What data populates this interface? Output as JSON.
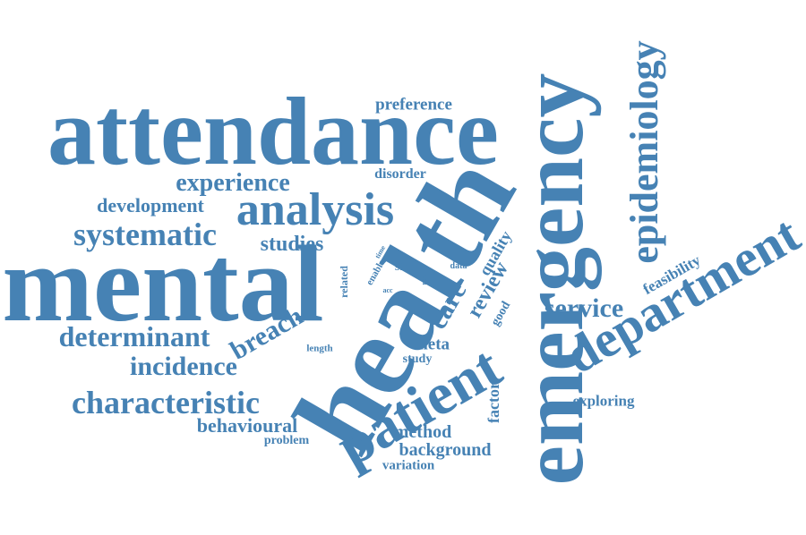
{
  "color": "#4682b4",
  "words": {
    "attendance": "attendance",
    "mental": "mental",
    "health": "health",
    "emergency": "emergency",
    "department": "department",
    "patient": "patient",
    "epidemiology": "epidemiology",
    "analysis": "analysis",
    "systematic": "systematic",
    "experience": "experience",
    "development": "development",
    "preference": "preference",
    "disorder": "disorder",
    "studies": "studies",
    "care": "care",
    "review": "review",
    "quality": "quality",
    "service": "service",
    "feasibility": "feasibility",
    "determinant": "determinant",
    "breach": "breach",
    "incidence": "incidence",
    "characteristic": "characteristic",
    "behavioural": "behavioural",
    "problem": "problem",
    "method": "method",
    "background": "background",
    "variation": "variation",
    "meta": "meta",
    "study": "study",
    "length": "length",
    "factor": "factor",
    "exploring": "exploring",
    "good": "good",
    "site": "site",
    "related": "related",
    "enable": "enable",
    "time": "time",
    "data": "data",
    "acc": "acc",
    "real": "real"
  }
}
